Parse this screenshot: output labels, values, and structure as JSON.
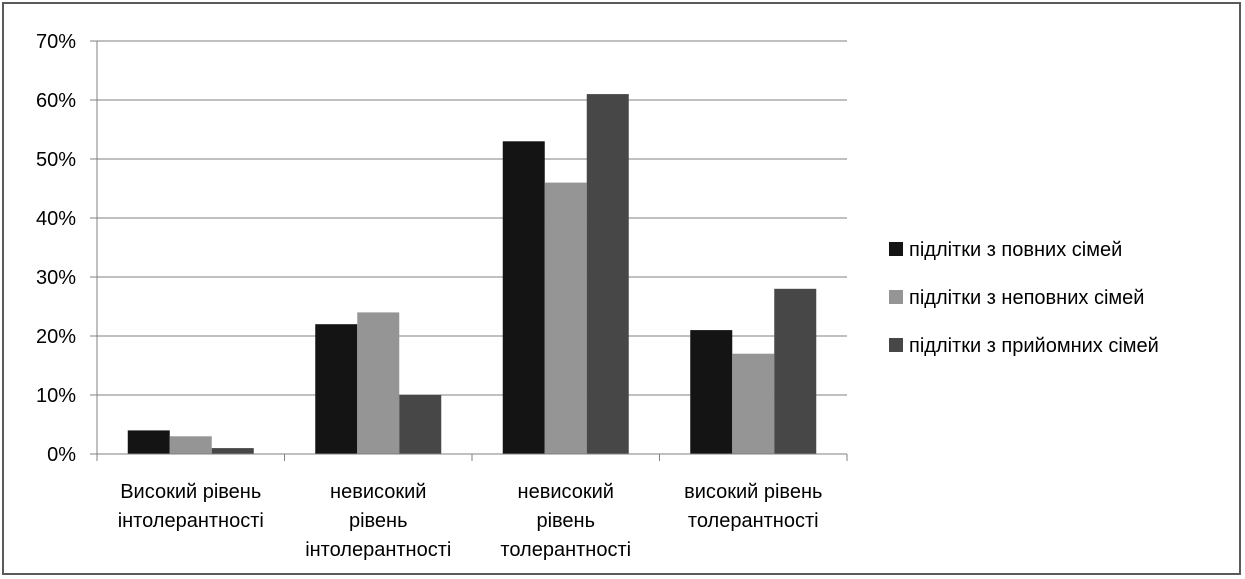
{
  "chart_data": {
    "type": "bar",
    "title": "",
    "xlabel": "",
    "ylabel": "",
    "ylim": [
      0,
      70
    ],
    "y_tick_step": 10,
    "y_tick_format": "percent",
    "grid": true,
    "legend_position": "right",
    "categories": [
      [
        "Високий рівень",
        "інтолерантності"
      ],
      [
        "невисокий",
        "рівень",
        "інтолерантності"
      ],
      [
        "невисокий",
        "рівень",
        "толерантності"
      ],
      [
        "високий рівень",
        "толерантності"
      ]
    ],
    "series": [
      {
        "name": "підлітки з повних сімей",
        "color": "#141414",
        "values": [
          4,
          22,
          53,
          21
        ]
      },
      {
        "name": "підлітки з неповних сімей",
        "color": "#959595",
        "values": [
          3,
          24,
          46,
          17
        ]
      },
      {
        "name": "підлітки з прийомних сімей",
        "color": "#474747",
        "values": [
          1,
          10,
          61,
          28
        ]
      }
    ]
  }
}
